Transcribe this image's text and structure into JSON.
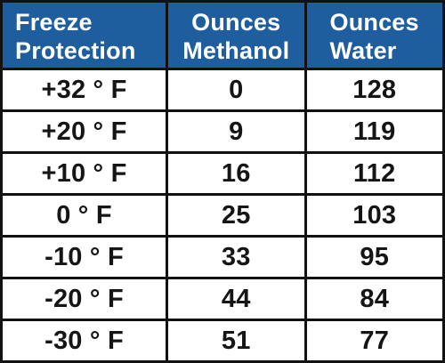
{
  "table": {
    "headers": [
      {
        "line1": "Freeze",
        "line2": "Protection"
      },
      {
        "line1": "Ounces",
        "line2": "Methanol"
      },
      {
        "line1": "Ounces",
        "line2": "Water"
      }
    ],
    "rows": [
      {
        "temp": "+32 ° F",
        "methanol": "0",
        "water": "128"
      },
      {
        "temp": "+20 ° F",
        "methanol": "9",
        "water": "119"
      },
      {
        "temp": "+10 ° F",
        "methanol": "16",
        "water": "112"
      },
      {
        "temp": "0 ° F",
        "methanol": "25",
        "water": "103"
      },
      {
        "temp": "-10 ° F",
        "methanol": "33",
        "water": "95"
      },
      {
        "temp": "-20 ° F",
        "methanol": "44",
        "water": "84"
      },
      {
        "temp": "-30 ° F",
        "methanol": "51",
        "water": "77"
      }
    ]
  },
  "colors": {
    "header_background": "#1f5e9e",
    "header_text": "#ffffff",
    "grid_lines": "#111111",
    "cell_background": "#ffffff",
    "cell_text": "#151515"
  }
}
